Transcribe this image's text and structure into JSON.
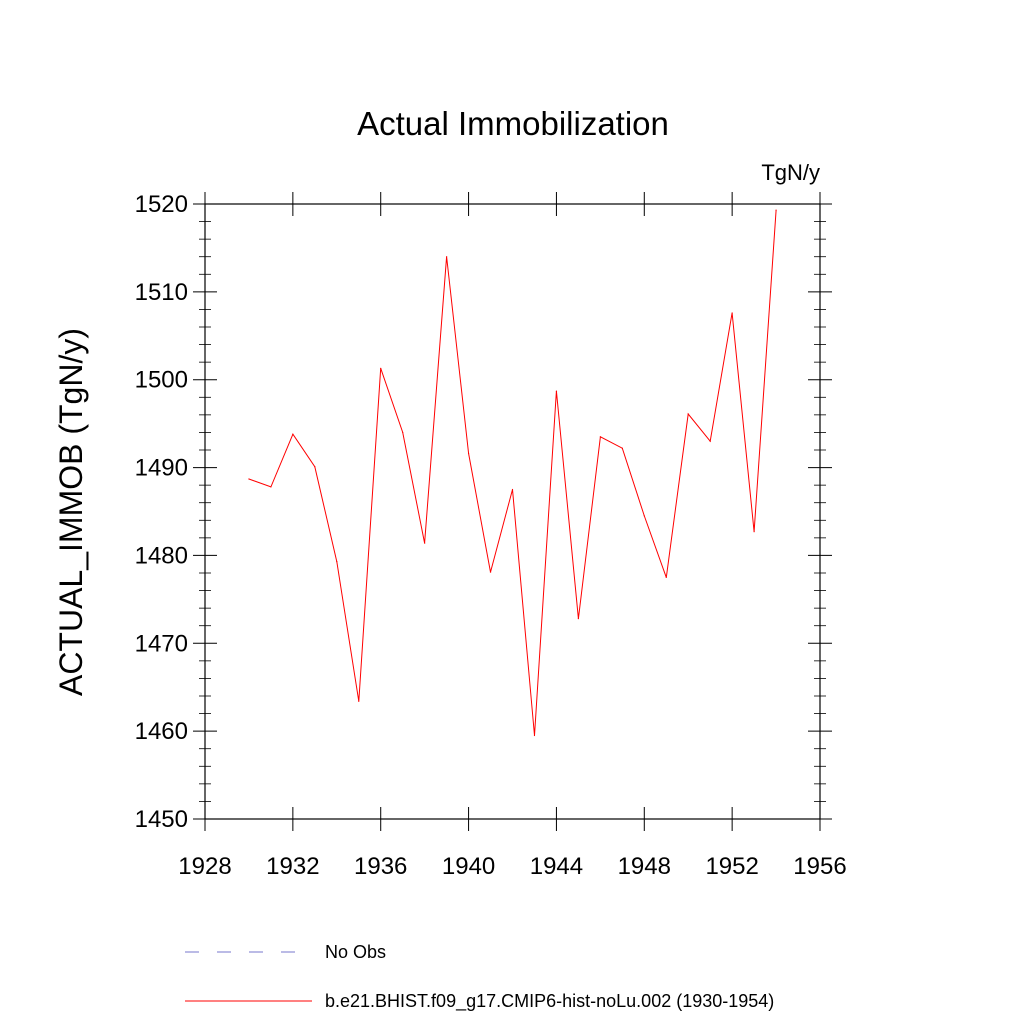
{
  "chart_data": {
    "type": "line",
    "title": "Actual Immobilization",
    "units": "TgN/y",
    "ylabel": "ACTUAL_IMMOB  (TgN/y)",
    "xlabel": "",
    "xlim": [
      1928,
      1956
    ],
    "ylim": [
      1450,
      1520
    ],
    "x_ticks": [
      "1928",
      "1932",
      "1936",
      "1940",
      "1944",
      "1948",
      "1952",
      "1956"
    ],
    "y_ticks": [
      "1450",
      "1460",
      "1470",
      "1480",
      "1490",
      "1500",
      "1510",
      "1520"
    ],
    "grid": false,
    "legend_position": "bottom",
    "x": [
      1930,
      1931,
      1932,
      1933,
      1934,
      1935,
      1936,
      1937,
      1938,
      1939,
      1940,
      1941,
      1942,
      1943,
      1944,
      1945,
      1946,
      1947,
      1948,
      1949,
      1950,
      1951,
      1952,
      1953,
      1954
    ],
    "series": [
      {
        "name": "b.e21.BHIST.f09_g17.CMIP6-hist-noLu.002 (1930-1954)",
        "color": "#ff0000",
        "style": "solid",
        "values": [
          1488.7,
          1487.8,
          1493.8,
          1490.1,
          1479.3,
          1463.4,
          1501.3,
          1494.0,
          1481.4,
          1514.0,
          1491.6,
          1478.1,
          1487.5,
          1459.5,
          1498.7,
          1472.8,
          1493.5,
          1492.2,
          1484.5,
          1477.5,
          1496.1,
          1493.0,
          1507.6,
          1482.7,
          1519.3
        ]
      }
    ],
    "legend": [
      {
        "label": "No Obs",
        "color": "#7777cc",
        "style": "dashed"
      },
      {
        "label": "b.e21.BHIST.f09_g17.CMIP6-hist-noLu.002 (1930-1954)",
        "color": "#ff0000",
        "style": "solid"
      }
    ]
  }
}
